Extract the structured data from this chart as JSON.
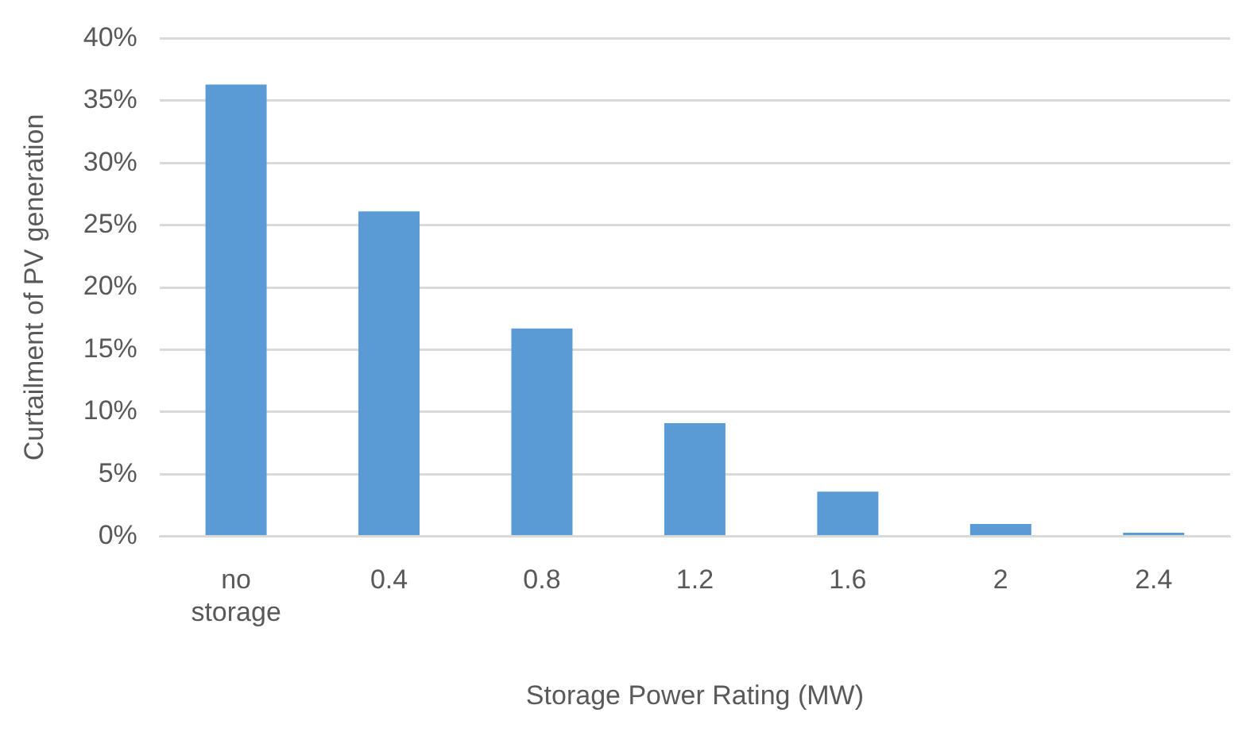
{
  "chart_data": {
    "type": "bar",
    "xlabel": "Storage Power Rating (MW)",
    "ylabel": "Curtailment of PV generation",
    "categories": [
      "no storage",
      "0.4",
      "0.8",
      "1.2",
      "1.6",
      "2",
      "2.4"
    ],
    "values": [
      36.3,
      26.1,
      16.7,
      9.1,
      3.6,
      1.0,
      0.3
    ],
    "color": "#5b9bd5",
    "ylim": [
      0,
      40
    ],
    "yticks": [
      {
        "value": 0,
        "label": "0%"
      },
      {
        "value": 5,
        "label": "5%"
      },
      {
        "value": 10,
        "label": "10%"
      },
      {
        "value": 15,
        "label": "15%"
      },
      {
        "value": 20,
        "label": "20%"
      },
      {
        "value": 25,
        "label": "25%"
      },
      {
        "value": 30,
        "label": "30%"
      },
      {
        "value": 35,
        "label": "35%"
      },
      {
        "value": 40,
        "label": "40%"
      }
    ],
    "grid": "y",
    "legend": false
  }
}
